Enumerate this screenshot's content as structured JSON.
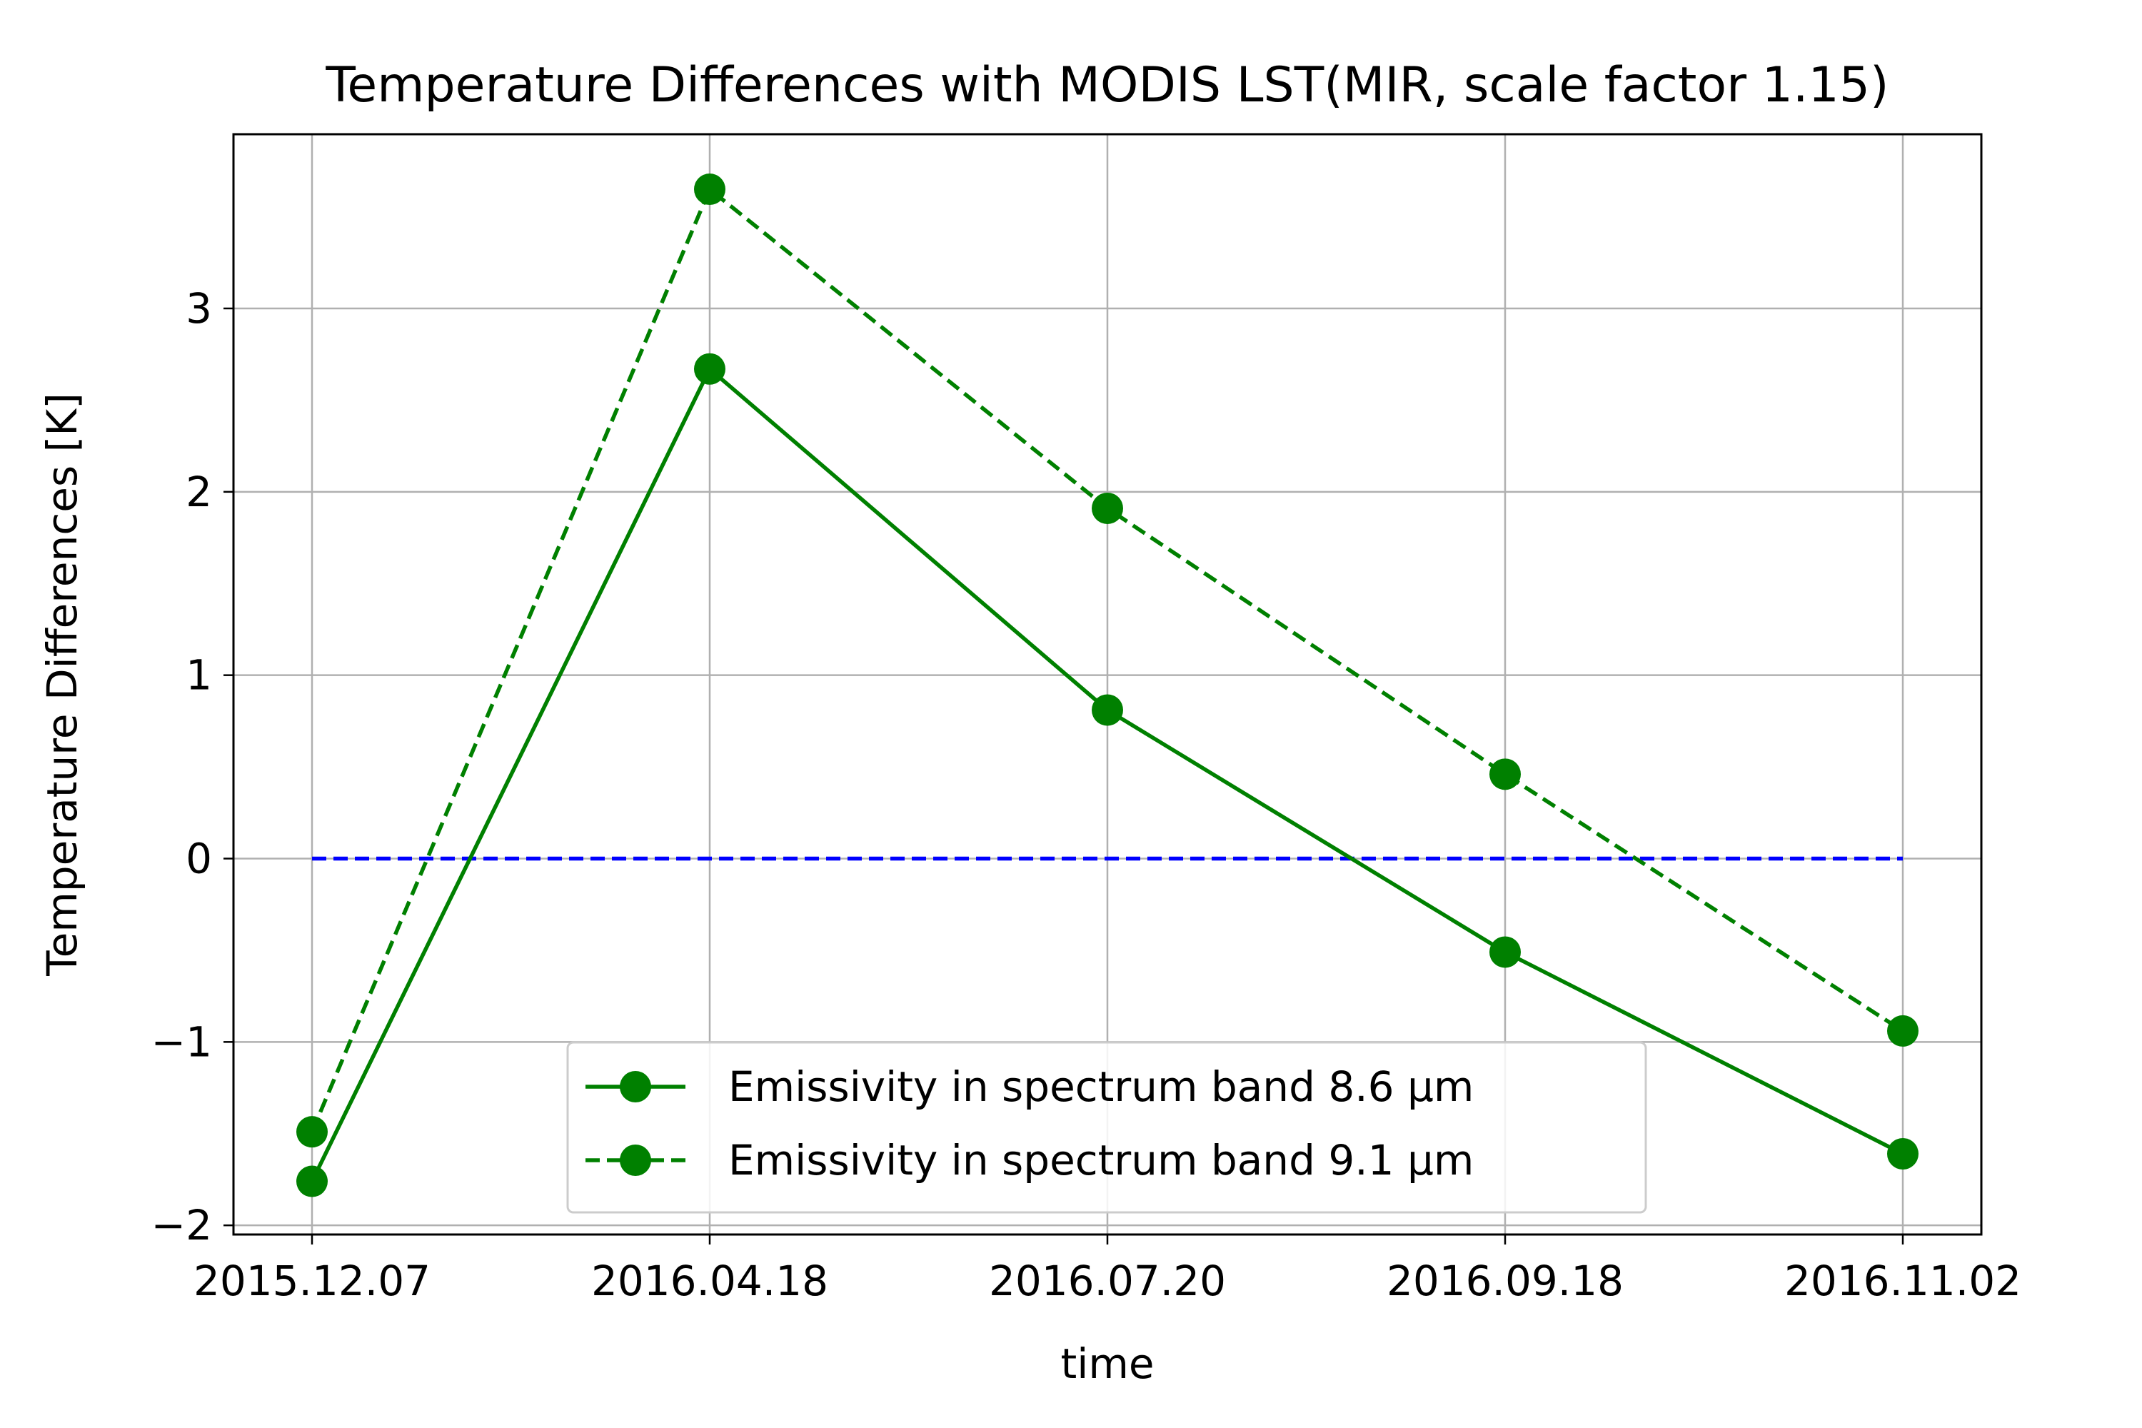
{
  "chart_data": {
    "type": "line",
    "title": "Temperature Differences with MODIS LST(MIR, scale factor 1.15)",
    "xlabel": "time",
    "ylabel": "Temperature Differences [K]",
    "categories": [
      "2015.12.07",
      "2016.04.18",
      "2016.07.20",
      "2016.09.18",
      "2016.11.02"
    ],
    "ylim": [
      -2.05,
      3.95
    ],
    "yticks": [
      -2,
      -1,
      0,
      1,
      2,
      3
    ],
    "ytick_labels": [
      "−2",
      "−1",
      "0",
      "1",
      "2",
      "3"
    ],
    "grid": true,
    "legend_position": "lower-center",
    "series": [
      {
        "name": "Emissivity in spectrum band 8.6 μm",
        "values": [
          -1.76,
          2.67,
          0.81,
          -0.51,
          -1.61
        ],
        "color": "#008000",
        "line_style": "solid",
        "marker": "circle"
      },
      {
        "name": "Emissivity in spectrum band 9.1 μm",
        "values": [
          -1.49,
          3.65,
          1.91,
          0.46,
          -0.94
        ],
        "color": "#008000",
        "line_style": "dashed",
        "marker": "circle"
      }
    ],
    "reference_line": {
      "value": 0,
      "color": "#0000ff",
      "line_style": "dashed"
    }
  }
}
